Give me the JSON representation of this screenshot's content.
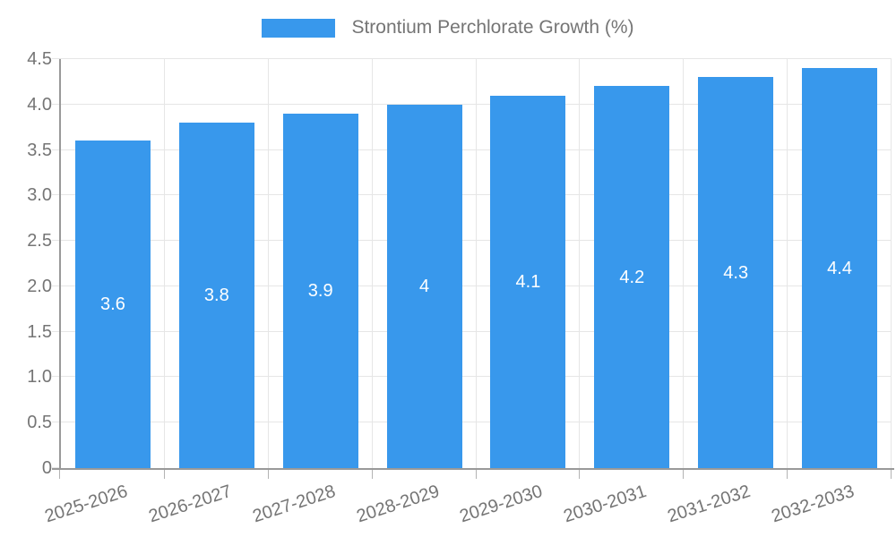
{
  "legend": {
    "label": "Strontium Perchlorate Growth (%)"
  },
  "chart_data": {
    "type": "bar",
    "title": "Strontium Perchlorate Growth (%)",
    "categories": [
      "2025-2026",
      "2026-2027",
      "2027-2028",
      "2028-2029",
      "2029-2030",
      "2030-2031",
      "2031-2032",
      "2032-2033"
    ],
    "values": [
      3.6,
      3.8,
      3.9,
      4,
      4.1,
      4.2,
      4.3,
      4.4
    ],
    "value_labels": [
      "3.6",
      "3.8",
      "3.9",
      "4",
      "4.1",
      "4.2",
      "4.3",
      "4.4"
    ],
    "xlabel": "",
    "ylabel": "",
    "ylim": [
      0,
      4.5
    ],
    "ytick_step": 0.5,
    "ytick_labels": [
      "0",
      "0.5",
      "1.0",
      "1.5",
      "2.0",
      "2.5",
      "3.0",
      "3.5",
      "4.0",
      "4.5"
    ],
    "grid": true,
    "legend_position": "top",
    "x_label_rotation_deg": -18,
    "colors": {
      "bar": "#3898ec",
      "bar_label": "#ffffff",
      "axis_text": "#757575",
      "axis_line": "#999999",
      "gridline": "#e6e6e6",
      "tick_line": "#b3b3b3"
    }
  }
}
